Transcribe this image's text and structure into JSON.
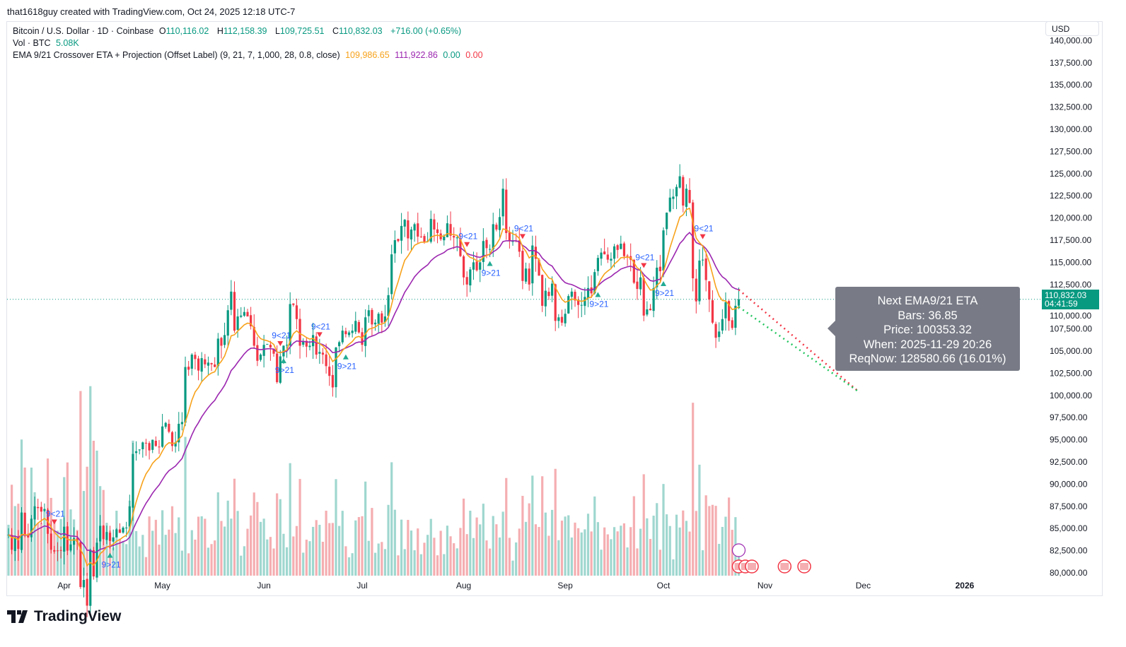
{
  "credit": "that1618guy created with TradingView.com, Oct 24, 2025 12:18 UTC-7",
  "legend": {
    "symbol": "Bitcoin / U.S. Dollar · 1D · Coinbase",
    "o_label": "O",
    "o": "110,116.02",
    "h_label": "H",
    "h": "112,158.39",
    "l_label": "L",
    "l": "109,725.51",
    "c_label": "C",
    "c": "110,832.03",
    "change": "+716.00 (+0.65%)",
    "vol_label": "Vol · BTC",
    "vol": "5.08K",
    "ind_label": "EMA 9/21 Crossover ETA + Projection (Offset Label) (9, 21, 7, 1,000, 28, 0.8, close)",
    "ema9": "109,986.65",
    "ema21": "111,922.86",
    "v1": "0.00",
    "v2": "0.00"
  },
  "currency": "USD",
  "price_label": {
    "price": "110,832.03",
    "countdown": "04:41:59"
  },
  "tooltip": {
    "title": "Next EMA9/21 ETA",
    "bars": "Bars: 36.85",
    "price": "Price: 100353.32",
    "when": "When: 2025-11-29 20:26",
    "reqnow": "ReqNow: 128580.66 (16.01%)"
  },
  "brand": "TradingView",
  "colors": {
    "up": "#089981",
    "down": "#f23645",
    "ema9": "#f7a21b",
    "ema21": "#9c27b0",
    "tooltip": "#787b86"
  },
  "chart_data": {
    "type": "candlestick",
    "start_date": "2025-03-15",
    "interval": "1D",
    "ylim": [
      80000,
      140000
    ],
    "y_ticks": [
      80000,
      82500,
      85000,
      87500,
      90000,
      92500,
      95000,
      97500,
      100000,
      102500,
      105000,
      107500,
      110000,
      112500,
      115000,
      117500,
      120000,
      122500,
      125000,
      127500,
      130000,
      132500,
      135000,
      137500,
      140000
    ],
    "x_ticks": [
      {
        "label": "Apr",
        "day": 17
      },
      {
        "label": "May",
        "day": 47
      },
      {
        "label": "Jun",
        "day": 78
      },
      {
        "label": "Jul",
        "day": 108
      },
      {
        "label": "Aug",
        "day": 139
      },
      {
        "label": "Sep",
        "day": 170
      },
      {
        "label": "Oct",
        "day": 200
      },
      {
        "label": "Nov",
        "day": 231
      },
      {
        "label": "Dec",
        "day": 261
      },
      {
        "label": "2026",
        "day": 292
      }
    ],
    "closes_k": [
      84.3,
      82.6,
      84.0,
      82.7,
      86.8,
      84.2,
      84.0,
      86.1,
      87.5,
      87.3,
      86.9,
      87.2,
      84.4,
      82.6,
      82.4,
      82.5,
      82.5,
      85.2,
      82.5,
      83.2,
      83.9,
      83.5,
      78.4,
      79.2,
      76.3,
      82.6,
      79.6,
      83.4,
      85.3,
      83.8,
      84.6,
      83.6,
      84.0,
      84.9,
      84.5,
      85.1,
      85.1,
      87.5,
      93.4,
      93.7,
      93.9,
      94.7,
      94.6,
      93.8,
      95.0,
      94.3,
      94.2,
      96.5,
      96.9,
      95.9,
      94.3,
      94.7,
      96.8,
      97.0,
      103.2,
      102.9,
      104.6,
      104.1,
      102.8,
      104.2,
      103.5,
      103.7,
      103.5,
      103.2,
      106.4,
      105.6,
      106.8,
      109.6,
      111.7,
      107.3,
      108.9,
      109.0,
      109.4,
      108.9,
      107.8,
      105.6,
      103.9,
      104.6,
      105.7,
      105.8,
      105.4,
      104.7,
      101.5,
      104.4,
      105.6,
      105.7,
      110.3,
      110.2,
      108.6,
      105.6,
      106.1,
      105.5,
      105.6,
      106.8,
      104.6,
      104.9,
      104.6,
      103.3,
      102.2,
      100.9,
      105.4,
      106.0,
      107.3,
      106.9,
      107.1,
      107.3,
      108.4,
      107.1,
      105.7,
      108.8,
      109.6,
      108.0,
      108.2,
      109.2,
      108.2,
      108.9,
      111.3,
      115.9,
      117.5,
      117.4,
      119.1,
      119.8,
      117.7,
      118.7,
      119.3,
      117.9,
      117.9,
      117.3,
      117.4,
      119.9,
      118.7,
      118.3,
      117.6,
      117.9,
      119.4,
      118.0,
      117.8,
      117.8,
      115.7,
      113.3,
      112.5,
      114.2,
      115.0,
      114.1,
      115.0,
      117.4,
      116.6,
      116.5,
      119.3,
      118.7,
      120.1,
      123.3,
      118.3,
      117.4,
      117.4,
      117.4,
      116.2,
      112.9,
      114.3,
      112.5,
      116.9,
      115.4,
      113.5,
      110.1,
      111.8,
      111.2,
      112.6,
      108.4,
      108.8,
      108.2,
      109.2,
      111.2,
      111.7,
      110.7,
      110.2,
      110.2,
      111.1,
      112.1,
      111.5,
      113.9,
      115.5,
      116.1,
      115.9,
      115.3,
      115.4,
      116.8,
      116.4,
      117.1,
      115.7,
      115.7,
      115.3,
      112.7,
      112.0,
      113.3,
      109.0,
      109.7,
      109.6,
      112.1,
      114.4,
      114.0,
      118.6,
      120.6,
      122.3,
      122.4,
      123.5,
      124.7,
      121.4,
      123.3,
      121.7,
      113.2,
      110.6,
      115.2,
      115.3,
      113.0,
      110.8,
      108.2,
      106.5,
      107.2,
      108.6,
      110.5,
      108.4,
      107.6,
      110.1,
      110.832
    ],
    "last_ohlc": {
      "open": 110116.02,
      "high": 112158.39,
      "low": 109725.51,
      "close": 110832.03
    },
    "projection": {
      "bars": 36.85,
      "target_price": 100353.32
    },
    "cross_labels": {
      "bull": "9>21",
      "bear": "9<21"
    }
  }
}
